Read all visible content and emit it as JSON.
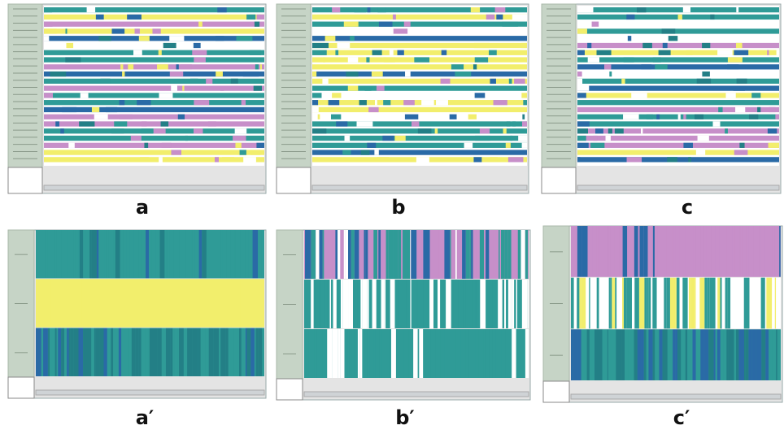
{
  "panels": [
    {
      "label": "a"
    },
    {
      "label": "b"
    },
    {
      "label": "c"
    },
    {
      "label": "a′"
    },
    {
      "label": "b′"
    },
    {
      "label": "c′"
    }
  ]
}
